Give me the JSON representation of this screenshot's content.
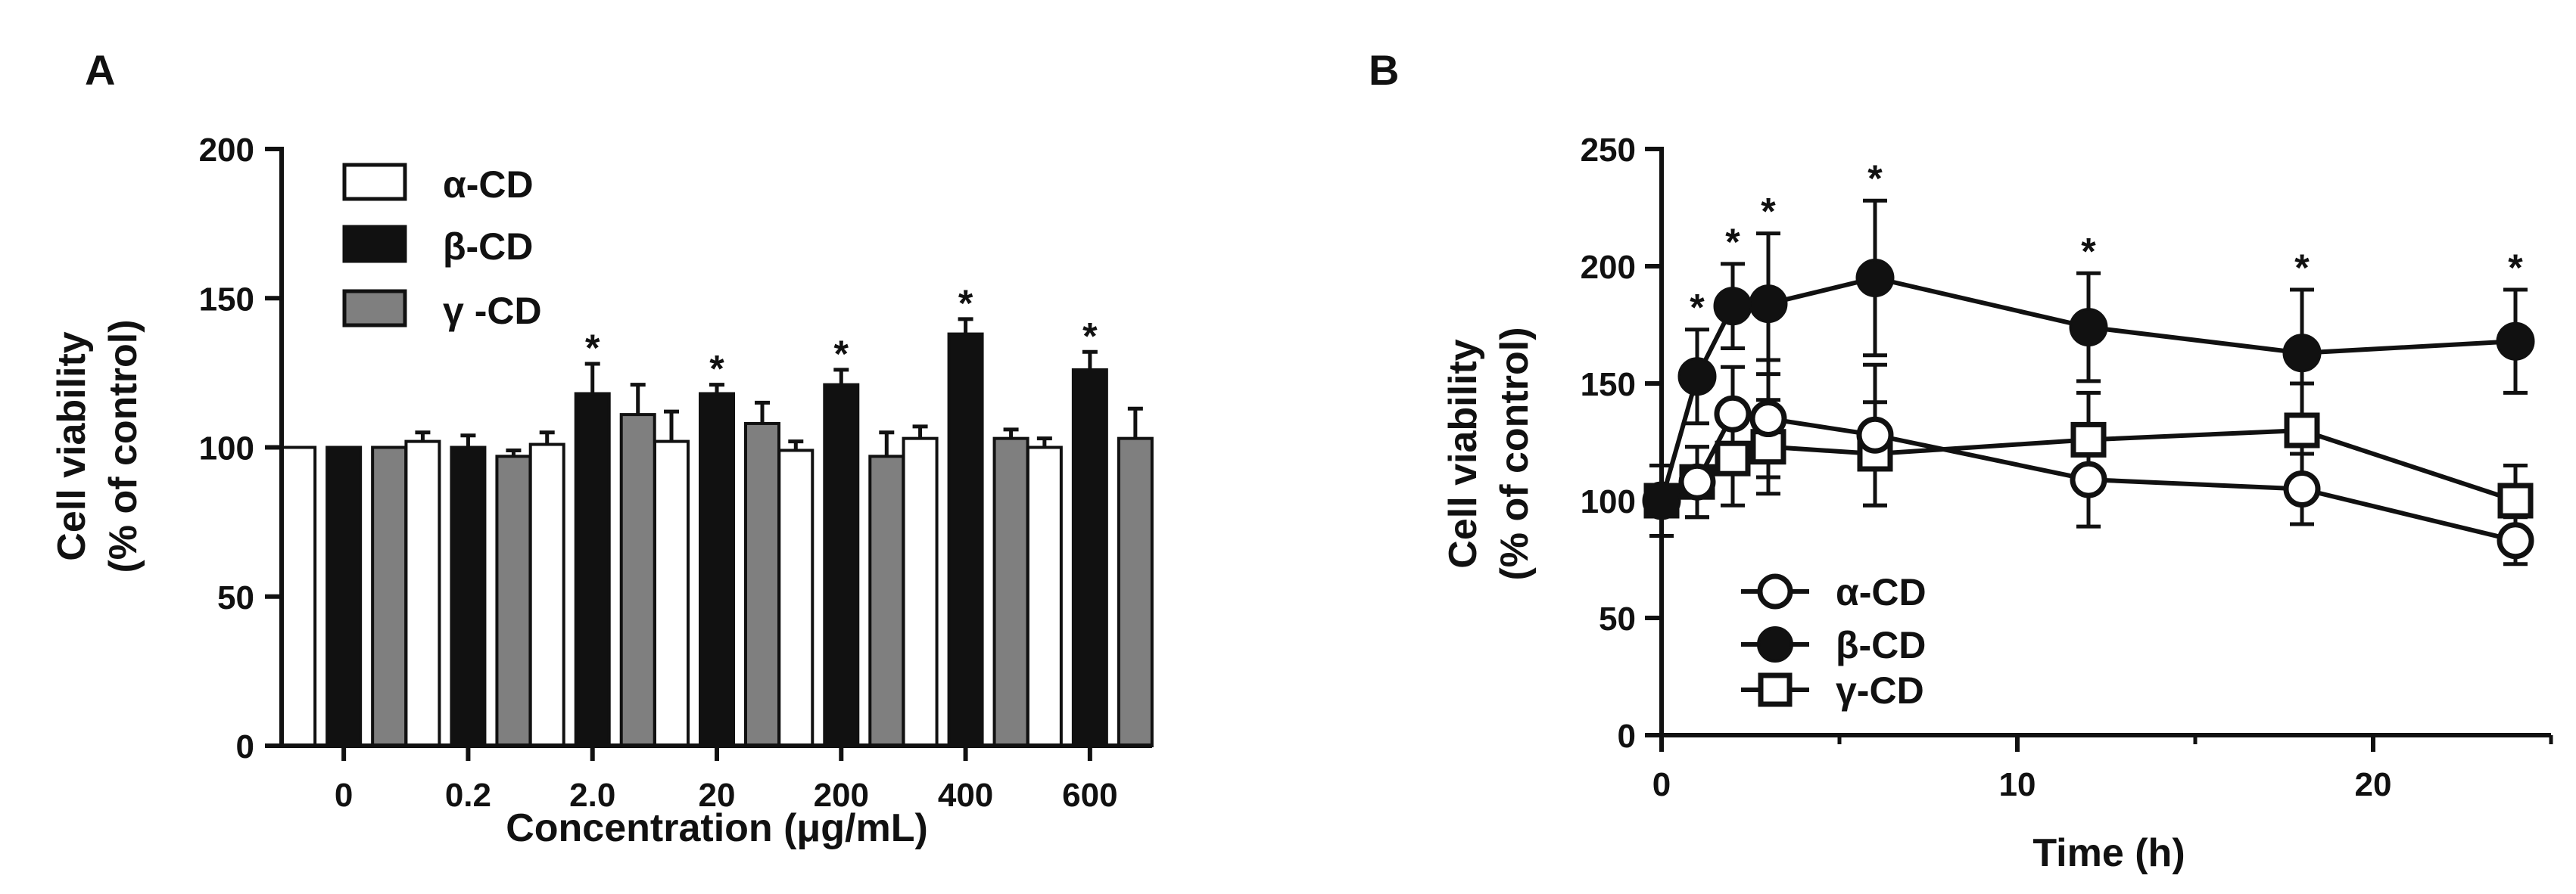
{
  "colors": {
    "alpha_fill": "#ffffff",
    "beta_fill": "#111111",
    "gamma_fill": "#7f7f7f",
    "stroke": "#111111"
  },
  "chart_data": [
    {
      "panel": "A",
      "type": "bar",
      "xlabel": "Concentration (μg/mL)",
      "ylabel": [
        "Cell viability",
        "(% of control)"
      ],
      "ylim": [
        0,
        200
      ],
      "yticks": [
        "0",
        "50",
        "100",
        "150",
        "200"
      ],
      "categories": [
        "0",
        "0.2",
        "2.0",
        "20",
        "200",
        "400",
        "600"
      ],
      "legend_position": "top-left",
      "series": [
        {
          "name": "α-CD",
          "values": [
            100,
            102,
            101,
            102,
            99,
            103,
            100
          ],
          "errors": [
            0,
            3,
            4,
            10,
            3,
            4,
            3
          ],
          "significant": [
            false,
            false,
            false,
            false,
            false,
            false,
            false
          ]
        },
        {
          "name": "β-CD",
          "values": [
            100,
            100,
            118,
            118,
            121,
            138,
            126
          ],
          "errors": [
            0,
            4,
            10,
            3,
            5,
            5,
            6
          ],
          "significant": [
            false,
            false,
            true,
            true,
            true,
            true,
            true
          ]
        },
        {
          "name": "γ -CD",
          "values": [
            100,
            97,
            111,
            108,
            97,
            103,
            103
          ],
          "errors": [
            0,
            2,
            10,
            7,
            8,
            3,
            10
          ],
          "significant": [
            false,
            false,
            false,
            false,
            false,
            false,
            false
          ]
        }
      ],
      "star_label": "*"
    },
    {
      "panel": "B",
      "type": "line",
      "xlabel": "Time (h)",
      "ylabel": [
        "Cell viability",
        "(% of control)"
      ],
      "xlim": [
        0,
        25
      ],
      "ylim": [
        0,
        250
      ],
      "xticks": [
        "0",
        "10",
        "20"
      ],
      "yticks": [
        "0",
        "50",
        "100",
        "150",
        "200",
        "250"
      ],
      "legend_position": "bottom-left",
      "series": [
        {
          "name": "α-CD",
          "marker": "open-circle",
          "x": [
            0,
            1,
            2,
            3,
            6,
            12,
            18,
            24
          ],
          "y": [
            100,
            108,
            137,
            135,
            128,
            109,
            105,
            83
          ],
          "errors": [
            15,
            15,
            20,
            25,
            30,
            20,
            15,
            10
          ]
        },
        {
          "name": "β-CD",
          "marker": "filled-circle",
          "x": [
            0,
            1,
            2,
            3,
            6,
            12,
            18,
            24
          ],
          "y": [
            100,
            153,
            183,
            184,
            195,
            174,
            163,
            168
          ],
          "errors": [
            15,
            20,
            18,
            30,
            33,
            23,
            27,
            22
          ]
        },
        {
          "name": "γ-CD",
          "marker": "open-square",
          "x": [
            0,
            1,
            2,
            3,
            6,
            12,
            18,
            24
          ],
          "y": [
            100,
            108,
            118,
            123,
            120,
            126,
            130,
            100
          ],
          "errors": [
            15,
            15,
            20,
            20,
            22,
            20,
            20,
            15
          ]
        }
      ],
      "significant_x": [
        1,
        2,
        3,
        6,
        12,
        18,
        24
      ],
      "star_label": "*"
    }
  ]
}
